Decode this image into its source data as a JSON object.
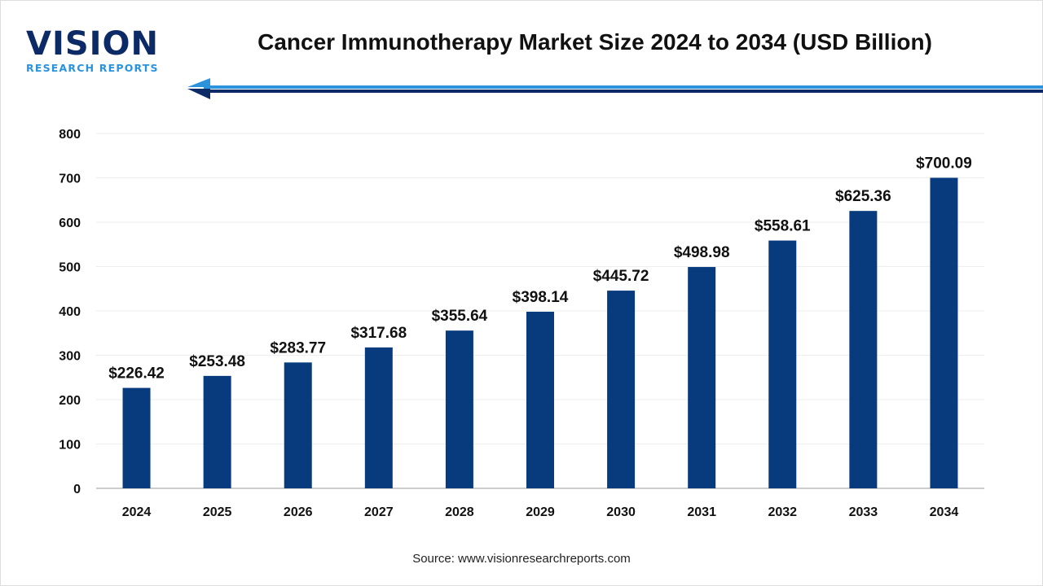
{
  "brand": {
    "name": "VISION",
    "subtitle": "RESEARCH REPORTS"
  },
  "source": "Source: www.visionresearchreports.com",
  "colors": {
    "bar": "#073b7e",
    "header_line_light": "#2a93dc",
    "header_line_dark": "#0b2a66"
  },
  "chart_data": {
    "type": "bar",
    "title": "Cancer Immunotherapy Market Size 2024 to 2034 (USD Billion)",
    "categories": [
      "2024",
      "2025",
      "2026",
      "2027",
      "2028",
      "2029",
      "2030",
      "2031",
      "2032",
      "2033",
      "2034"
    ],
    "values": [
      226.42,
      253.48,
      283.77,
      317.68,
      355.64,
      398.14,
      445.72,
      498.98,
      558.61,
      625.36,
      700.09
    ],
    "data_labels": [
      "$226.42",
      "$253.48",
      "$283.77",
      "$317.68",
      "$355.64",
      "$398.14",
      "$445.72",
      "$498.98",
      "$558.61",
      "$625.36",
      "$700.09"
    ],
    "yticks": [
      0,
      100,
      200,
      300,
      400,
      500,
      600,
      700,
      800
    ],
    "ylim": [
      0,
      800
    ],
    "xlabel": "",
    "ylabel": "",
    "grid": true,
    "legend": "none"
  }
}
